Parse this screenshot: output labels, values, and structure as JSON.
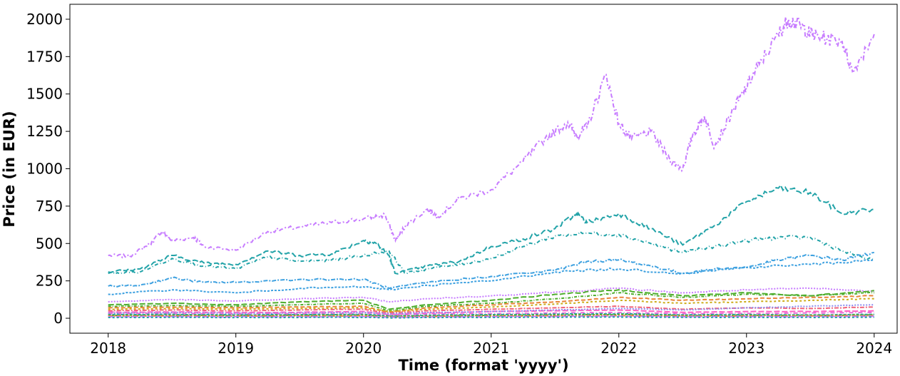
{
  "chart_data": {
    "type": "line",
    "title": "",
    "xlabel": "Time (format 'yyyy')",
    "ylabel": "Price (in EUR)",
    "xlim": [
      2017.7,
      2024.18
    ],
    "ylim": [
      -100,
      2100
    ],
    "x_ticks": [
      2018,
      2019,
      2020,
      2021,
      2022,
      2023,
      2024
    ],
    "x_tick_labels": [
      "2018",
      "2019",
      "2020",
      "2021",
      "2022",
      "2023",
      "2024"
    ],
    "y_ticks": [
      0,
      250,
      500,
      750,
      1000,
      1250,
      1500,
      1750,
      2000
    ],
    "y_tick_labels": [
      "0",
      "250",
      "500",
      "750",
      "1000",
      "1250",
      "1500",
      "1750",
      "2000"
    ],
    "grid": false,
    "legend": "none",
    "series": [
      {
        "color": "#c77cff",
        "dash": "6,3,2,3",
        "x": [
          2018.0,
          2018.17,
          2018.33,
          2018.42,
          2018.5,
          2018.67,
          2018.75,
          2019.0,
          2019.25,
          2019.5,
          2019.75,
          2020.0,
          2020.17,
          2020.25,
          2020.33,
          2020.5,
          2020.58,
          2020.75,
          2021.0,
          2021.25,
          2021.42,
          2021.6,
          2021.67,
          2021.75,
          2021.9,
          2022.0,
          2022.1,
          2022.25,
          2022.4,
          2022.5,
          2022.58,
          2022.67,
          2022.75,
          2022.9,
          2023.0,
          2023.1,
          2023.25,
          2023.33,
          2023.42,
          2023.5,
          2023.58,
          2023.75,
          2023.83,
          2024.0
        ],
        "y": [
          420,
          415,
          500,
          580,
          520,
          540,
          480,
          455,
          580,
          610,
          640,
          665,
          690,
          520,
          620,
          730,
          680,
          800,
          860,
          1050,
          1200,
          1310,
          1220,
          1280,
          1630,
          1300,
          1200,
          1250,
          1060,
          1000,
          1230,
          1350,
          1150,
          1400,
          1550,
          1700,
          1900,
          2000,
          1960,
          1900,
          1880,
          1850,
          1650,
          1900
        ]
      },
      {
        "color": "#22a3a8",
        "dash": "8,3",
        "x": [
          2018.0,
          2018.25,
          2018.5,
          2018.75,
          2019.0,
          2019.25,
          2019.5,
          2019.75,
          2020.0,
          2020.1,
          2020.2,
          2020.25,
          2020.5,
          2020.75,
          2021.0,
          2021.25,
          2021.5,
          2021.67,
          2021.75,
          2022.0,
          2022.25,
          2022.5,
          2022.75,
          2023.0,
          2023.25,
          2023.5,
          2023.75,
          2024.0
        ],
        "y": [
          310,
          330,
          420,
          370,
          360,
          450,
          420,
          430,
          520,
          500,
          420,
          300,
          350,
          380,
          480,
          530,
          600,
          700,
          640,
          700,
          600,
          490,
          620,
          780,
          870,
          840,
          700,
          730
        ]
      },
      {
        "color": "#22a3a8",
        "dash": "5,3,1,3",
        "x": [
          2018.0,
          2018.25,
          2018.5,
          2018.75,
          2019.0,
          2019.25,
          2019.5,
          2019.75,
          2020.0,
          2020.2,
          2020.33,
          2020.5,
          2020.75,
          2021.0,
          2021.25,
          2021.5,
          2021.75,
          2022.0,
          2022.25,
          2022.5,
          2022.75,
          2023.0,
          2023.25,
          2023.5,
          2023.75,
          2024.0
        ],
        "y": [
          300,
          310,
          400,
          350,
          330,
          410,
          380,
          390,
          420,
          450,
          300,
          330,
          360,
          400,
          480,
          550,
          570,
          560,
          500,
          440,
          480,
          520,
          540,
          540,
          450,
          385
        ]
      },
      {
        "color": "#3ea1e0",
        "dash": "6,2,2,2",
        "x": [
          2018.0,
          2018.25,
          2018.5,
          2018.75,
          2019.0,
          2019.5,
          2020.0,
          2020.2,
          2020.5,
          2021.0,
          2021.5,
          2021.75,
          2022.0,
          2022.25,
          2022.5,
          2022.75,
          2023.0,
          2023.25,
          2023.5,
          2023.75,
          2024.0
        ],
        "y": [
          215,
          220,
          270,
          240,
          240,
          260,
          260,
          200,
          240,
          280,
          320,
          380,
          390,
          350,
          300,
          330,
          340,
          390,
          420,
          390,
          440
        ]
      },
      {
        "color": "#3ea1e0",
        "dash": "3,2",
        "x": [
          2018.0,
          2018.5,
          2019.0,
          2019.5,
          2020.0,
          2020.2,
          2020.5,
          2021.0,
          2021.5,
          2022.0,
          2022.5,
          2023.0,
          2023.5,
          2024.0
        ],
        "y": [
          160,
          190,
          170,
          200,
          210,
          190,
          220,
          250,
          310,
          330,
          300,
          340,
          360,
          390
        ]
      },
      {
        "color": "#c77cff",
        "dash": "2,2",
        "x": [
          2018.0,
          2018.5,
          2019.0,
          2019.5,
          2020.0,
          2020.2,
          2020.5,
          2021.0,
          2021.5,
          2022.0,
          2022.5,
          2023.0,
          2023.5,
          2024.0
        ],
        "y": [
          110,
          125,
          115,
          130,
          140,
          110,
          130,
          150,
          175,
          200,
          170,
          190,
          200,
          180
        ]
      },
      {
        "color": "#4fae2e",
        "dash": "8,3",
        "x": [
          2018.0,
          2018.5,
          2019.0,
          2019.5,
          2020.0,
          2020.2,
          2020.5,
          2021.0,
          2021.5,
          2022.0,
          2022.5,
          2023.0,
          2023.5,
          2024.0
        ],
        "y": [
          90,
          100,
          90,
          110,
          120,
          60,
          90,
          120,
          160,
          190,
          150,
          170,
          150,
          185
        ]
      },
      {
        "color": "#4fae2e",
        "dash": "4,2,1,2",
        "x": [
          2018.0,
          2018.5,
          2019.0,
          2019.5,
          2020.0,
          2020.2,
          2020.5,
          2021.0,
          2021.5,
          2022.0,
          2022.5,
          2023.0,
          2023.5,
          2024.0
        ],
        "y": [
          80,
          85,
          80,
          90,
          100,
          50,
          80,
          100,
          130,
          170,
          140,
          160,
          150,
          170
        ]
      },
      {
        "color": "#e8853a",
        "dash": "6,3",
        "x": [
          2018.0,
          2018.5,
          2019.0,
          2019.5,
          2020.0,
          2020.2,
          2020.5,
          2021.0,
          2021.5,
          2022.0,
          2022.5,
          2023.0,
          2023.5,
          2024.0
        ],
        "y": [
          70,
          75,
          70,
          75,
          80,
          40,
          70,
          90,
          110,
          140,
          120,
          130,
          140,
          150
        ]
      },
      {
        "color": "#cdac1a",
        "dash": "3,3",
        "x": [
          2018.0,
          2018.5,
          2019.0,
          2019.5,
          2020.0,
          2020.2,
          2020.5,
          2021.0,
          2021.5,
          2022.0,
          2022.5,
          2023.0,
          2023.5,
          2024.0
        ],
        "y": [
          60,
          65,
          60,
          65,
          70,
          45,
          60,
          75,
          95,
          120,
          100,
          110,
          120,
          130
        ]
      },
      {
        "color": "#f0637a",
        "dash": "6,2,2,2",
        "x": [
          2018.0,
          2018.5,
          2019.0,
          2019.5,
          2020.0,
          2020.2,
          2020.5,
          2021.0,
          2021.5,
          2022.0,
          2022.5,
          2023.0,
          2023.5,
          2024.0
        ],
        "y": [
          50,
          55,
          50,
          55,
          60,
          35,
          50,
          60,
          70,
          80,
          60,
          70,
          65,
          75
        ]
      },
      {
        "color": "#ff61c3",
        "dash": "8,3",
        "x": [
          2018.0,
          2018.5,
          2019.0,
          2019.5,
          2020.0,
          2020.2,
          2020.5,
          2021.0,
          2021.5,
          2022.0,
          2022.5,
          2023.0,
          2023.5,
          2024.0
        ],
        "y": [
          40,
          42,
          38,
          40,
          45,
          25,
          35,
          45,
          50,
          55,
          40,
          45,
          45,
          50
        ]
      },
      {
        "color": "#8c8cf0",
        "dash": "2,2",
        "x": [
          2018.0,
          2018.5,
          2019.0,
          2019.5,
          2020.0,
          2020.2,
          2020.5,
          2021.0,
          2021.5,
          2022.0,
          2022.5,
          2023.0,
          2023.5,
          2024.0
        ],
        "y": [
          35,
          38,
          34,
          36,
          40,
          30,
          38,
          45,
          55,
          65,
          55,
          70,
          80,
          90
        ]
      },
      {
        "color": "#e86dd8",
        "dash": "6,3,1,3",
        "x": [
          2018.0,
          2018.5,
          2019.0,
          2019.5,
          2020.0,
          2020.2,
          2020.5,
          2021.0,
          2021.5,
          2022.0,
          2022.5,
          2023.0,
          2023.5,
          2024.0
        ],
        "y": [
          30,
          32,
          28,
          30,
          32,
          20,
          28,
          30,
          35,
          38,
          30,
          32,
          35,
          40
        ]
      },
      {
        "color": "#22a3a8",
        "dash": "4,2",
        "x": [
          2018.0,
          2018.5,
          2019.0,
          2019.5,
          2020.0,
          2020.2,
          2020.5,
          2021.0,
          2021.5,
          2022.0,
          2022.5,
          2023.0,
          2023.5,
          2024.0
        ],
        "y": [
          25,
          26,
          22,
          24,
          26,
          15,
          20,
          24,
          28,
          30,
          22,
          24,
          22,
          26
        ]
      },
      {
        "color": "#4fae2e",
        "dash": "3,2",
        "x": [
          2018.0,
          2018.5,
          2019.0,
          2019.5,
          2020.0,
          2020.2,
          2020.5,
          2021.0,
          2021.5,
          2022.0,
          2022.5,
          2023.0,
          2023.5,
          2024.0
        ],
        "y": [
          20,
          20,
          18,
          20,
          22,
          12,
          16,
          20,
          22,
          25,
          18,
          20,
          20,
          22
        ]
      },
      {
        "color": "#e8853a",
        "dash": "6,2,2,2",
        "x": [
          2018.0,
          2018.5,
          2019.0,
          2019.5,
          2020.0,
          2020.2,
          2020.5,
          2021.0,
          2021.5,
          2022.0,
          2022.5,
          2023.0,
          2023.5,
          2024.0
        ],
        "y": [
          15,
          16,
          14,
          15,
          16,
          8,
          12,
          14,
          16,
          18,
          14,
          15,
          16,
          18
        ]
      },
      {
        "color": "#c77cff",
        "dash": "8,3",
        "x": [
          2018.0,
          2018.5,
          2019.0,
          2019.5,
          2020.0,
          2020.2,
          2020.5,
          2021.0,
          2021.5,
          2022.0,
          2022.5,
          2023.0,
          2023.5,
          2024.0
        ],
        "y": [
          10,
          11,
          10,
          10,
          11,
          6,
          9,
          10,
          12,
          13,
          10,
          11,
          11,
          12
        ]
      },
      {
        "color": "#22a3a8",
        "dash": "3,3",
        "x": [
          2018.0,
          2018.5,
          2019.0,
          2019.5,
          2020.0,
          2020.2,
          2020.5,
          2021.0,
          2021.5,
          2022.0,
          2022.5,
          2023.0,
          2023.5,
          2024.0
        ],
        "y": [
          5,
          6,
          5,
          5,
          6,
          3,
          5,
          6,
          7,
          8,
          6,
          6,
          6,
          7
        ]
      }
    ]
  }
}
